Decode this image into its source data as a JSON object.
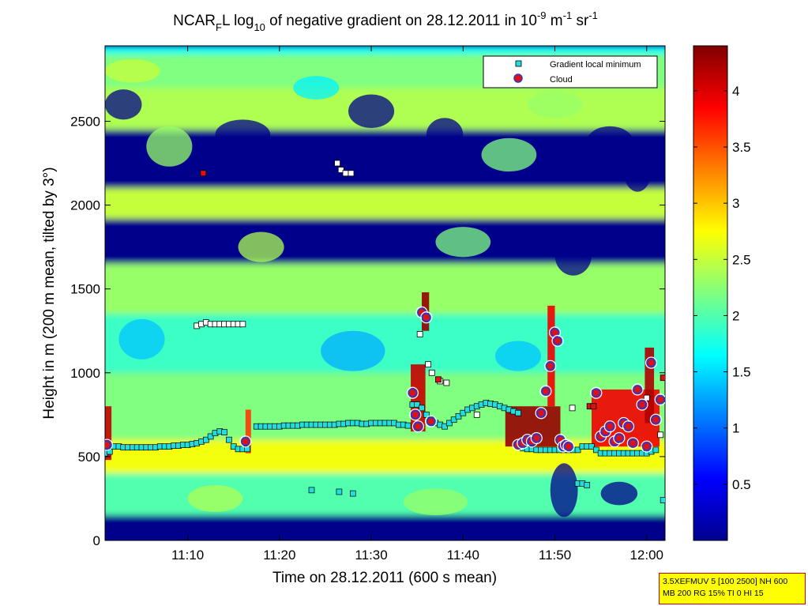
{
  "chart_data": {
    "type": "heatmap",
    "title": {
      "prefix": "NCAR",
      "prefix_sub": "F",
      "after_prefix": "L log",
      "log_sub": "10",
      "middle": " of negative gradient on 28.12.2011 in 10",
      "exp1": "-9",
      "unit1": " m",
      "exp2": "-1",
      "unit2": " sr",
      "exp3": "-1"
    },
    "xlabel": "Time on 28.12.2011 (600 s mean)",
    "ylabel": "Height in m (200 m mean, tilted by 3°)",
    "x_range_min": [
      661,
      722
    ],
    "x_tick_labels": [
      "11:10",
      "11:20",
      "11:30",
      "11:40",
      "11:50",
      "12:00"
    ],
    "x_tick_values_min": [
      670,
      680,
      690,
      700,
      710,
      720
    ],
    "y_range": [
      0,
      2950
    ],
    "y_tick_values": [
      0,
      500,
      1000,
      1500,
      2000,
      2500
    ],
    "y_tick_labels": [
      "0",
      "500",
      "1000",
      "1500",
      "2000",
      "2500"
    ],
    "colorbar": {
      "range": [
        0,
        4.4
      ],
      "tick_values": [
        0.5,
        1,
        1.5,
        2,
        2.5,
        3,
        3.5,
        4
      ],
      "tick_labels": [
        "0.5",
        "1",
        "1.5",
        "2",
        "2.5",
        "3",
        "3.5",
        "4"
      ],
      "colormap": "jet"
    },
    "legend": {
      "placement": "top-right",
      "entries": [
        {
          "label": "Gradient local minimum",
          "marker": "square",
          "color": "#22dddd"
        },
        {
          "label": "Cloud",
          "marker": "circle",
          "color": "#dd1111"
        }
      ]
    },
    "series": [
      {
        "name": "Gradient local minimum",
        "x_min": [
          661.0,
          661.5,
          662.0,
          662.5,
          663.0,
          663.5,
          664.0,
          664.5,
          665.0,
          665.5,
          666.0,
          666.5,
          667.0,
          667.5,
          668.0,
          668.5,
          669.0,
          669.5,
          670.0,
          670.5,
          671.0,
          671.5,
          672.0,
          672.5,
          673.0,
          673.5,
          674.0,
          674.5,
          675.0,
          675.5,
          676.0,
          676.5,
          677.5,
          678.0,
          678.5,
          679.0,
          679.5,
          680.0,
          680.5,
          681.0,
          681.5,
          682.0,
          682.5,
          683.0,
          683.5,
          684.0,
          684.5,
          685.0,
          685.5,
          686.0,
          686.5,
          687.0,
          687.5,
          688.0,
          688.5,
          689.0,
          689.5,
          690.0,
          690.5,
          691.0,
          691.5,
          692.0,
          692.5,
          693.0,
          693.5,
          694.0,
          694.5,
          695.0,
          695.5,
          696.0,
          696.5,
          697.0,
          697.5,
          698.0,
          698.5,
          699.0,
          699.5,
          700.0,
          700.5,
          701.0,
          701.5,
          702.0,
          702.5,
          703.0,
          703.5,
          704.0,
          704.5,
          705.0,
          705.5,
          706.0,
          706.5,
          707.0,
          707.5,
          708.0,
          708.5,
          709.0,
          709.5,
          710.0,
          710.5,
          711.0,
          711.5,
          712.0,
          712.5,
          713.0,
          713.5,
          714.0,
          714.5,
          715.0,
          715.5,
          716.0,
          716.5,
          717.0,
          717.5,
          718.0,
          718.5,
          719.0,
          719.5,
          720.0,
          720.5,
          721.0,
          721.5
        ],
        "y": [
          520,
          530,
          560,
          560,
          555,
          555,
          555,
          555,
          555,
          555,
          555,
          555,
          560,
          560,
          560,
          565,
          565,
          570,
          570,
          575,
          580,
          590,
          600,
          620,
          640,
          650,
          645,
          600,
          560,
          545,
          545,
          545,
          680,
          680,
          680,
          680,
          680,
          680,
          685,
          685,
          685,
          685,
          690,
          690,
          690,
          690,
          690,
          690,
          690,
          690,
          695,
          695,
          700,
          700,
          700,
          695,
          695,
          700,
          700,
          700,
          700,
          700,
          700,
          690,
          690,
          685,
          810,
          810,
          790,
          750,
          720,
          700,
          690,
          680,
          700,
          720,
          740,
          760,
          780,
          790,
          800,
          810,
          820,
          815,
          810,
          800,
          790,
          780,
          770,
          760,
          550,
          545,
          545,
          540,
          540,
          540,
          540,
          540,
          540,
          540,
          540,
          540,
          540,
          560,
          560,
          560,
          540,
          520,
          520,
          520,
          520,
          520,
          520,
          520,
          520,
          520,
          520,
          520,
          530,
          540
        ]
      },
      {
        "name": "Cloud",
        "x_min": [
          661.2,
          676.3,
          694.5,
          694.8,
          695.1,
          695.5,
          696.0,
          696.5,
          706.0,
          706.5,
          707.0,
          707.5,
          708.0,
          708.5,
          709.0,
          709.5,
          710.0,
          710.3,
          710.6,
          710.9,
          711.2,
          711.5,
          714.5,
          715.0,
          715.5,
          716.0,
          716.5,
          717.0,
          717.5,
          718.0,
          718.5,
          719.0,
          719.5,
          720.0,
          720.5,
          721.0,
          721.5
        ],
        "y": [
          570,
          590,
          880,
          750,
          680,
          1360,
          1330,
          710,
          570,
          580,
          600,
          590,
          610,
          760,
          890,
          1040,
          1240,
          1190,
          600,
          560,
          570,
          560,
          880,
          620,
          650,
          680,
          590,
          610,
          700,
          680,
          580,
          900,
          810,
          560,
          1060,
          720,
          840
        ]
      }
    ],
    "other_markers": {
      "white_squares": [
        {
          "x_min": 671.0,
          "y": 1280
        },
        {
          "x_min": 671.5,
          "y": 1290
        },
        {
          "x_min": 672.0,
          "y": 1300
        },
        {
          "x_min": 672.5,
          "y": 1290
        },
        {
          "x_min": 673.0,
          "y": 1290
        },
        {
          "x_min": 673.5,
          "y": 1290
        },
        {
          "x_min": 674.0,
          "y": 1290
        },
        {
          "x_min": 674.5,
          "y": 1290
        },
        {
          "x_min": 675.0,
          "y": 1290
        },
        {
          "x_min": 675.5,
          "y": 1290
        },
        {
          "x_min": 676.0,
          "y": 1290
        },
        {
          "x_min": 686.3,
          "y": 2250
        },
        {
          "x_min": 686.7,
          "y": 2210
        },
        {
          "x_min": 687.2,
          "y": 2190
        },
        {
          "x_min": 687.8,
          "y": 2190
        },
        {
          "x_min": 695.3,
          "y": 1230
        },
        {
          "x_min": 696.2,
          "y": 1050
        },
        {
          "x_min": 696.6,
          "y": 1000
        },
        {
          "x_min": 697.5,
          "y": 950
        },
        {
          "x_min": 698.2,
          "y": 940
        },
        {
          "x_min": 701.5,
          "y": 750
        },
        {
          "x_min": 711.9,
          "y": 790
        },
        {
          "x_min": 720.0,
          "y": 850
        },
        {
          "x_min": 721.5,
          "y": 630
        }
      ],
      "red_squares": [
        {
          "x_min": 671.7,
          "y": 2190
        },
        {
          "x_min": 697.3,
          "y": 960
        },
        {
          "x_min": 713.8,
          "y": 800
        },
        {
          "x_min": 714.2,
          "y": 800
        },
        {
          "x_min": 721.8,
          "y": 970
        }
      ],
      "teal_low_squares": [
        {
          "x_min": 686.5,
          "y": 290
        },
        {
          "x_min": 688.0,
          "y": 280
        },
        {
          "x_min": 683.5,
          "y": 300
        },
        {
          "x_min": 712.5,
          "y": 340
        },
        {
          "x_min": 713.0,
          "y": 340
        },
        {
          "x_min": 713.5,
          "y": 330
        },
        {
          "x_min": 721.8,
          "y": 240
        }
      ]
    },
    "heatmap_bands": [
      {
        "y_from": 2750,
        "y_to": 2950,
        "level": 1.7
      },
      {
        "y_from": 2700,
        "y_to": 2900,
        "level": 2.2
      },
      {
        "y_from": 2450,
        "y_to": 2700,
        "level": 2.4
      },
      {
        "y_from": 2100,
        "y_to": 2450,
        "level": 0.05
      },
      {
        "y_from": 1920,
        "y_to": 2100,
        "level": 2.5
      },
      {
        "y_from": 1650,
        "y_to": 1920,
        "level": 0.05
      },
      {
        "y_from": 1350,
        "y_to": 1650,
        "level": 2.3
      },
      {
        "y_from": 1000,
        "y_to": 1350,
        "level": 1.9
      },
      {
        "y_from": 600,
        "y_to": 1000,
        "level": 2.2
      },
      {
        "y_from": 400,
        "y_to": 600,
        "level": 2.7
      },
      {
        "y_from": 150,
        "y_to": 400,
        "level": 2.0
      },
      {
        "y_from": 0,
        "y_to": 150,
        "level": 0.05
      }
    ]
  },
  "param_box": {
    "line1": "3.5XEFMUV 5 [100 2500] NH 600",
    "line2": "MB 200 RG 15% TI 0 HI 15"
  }
}
